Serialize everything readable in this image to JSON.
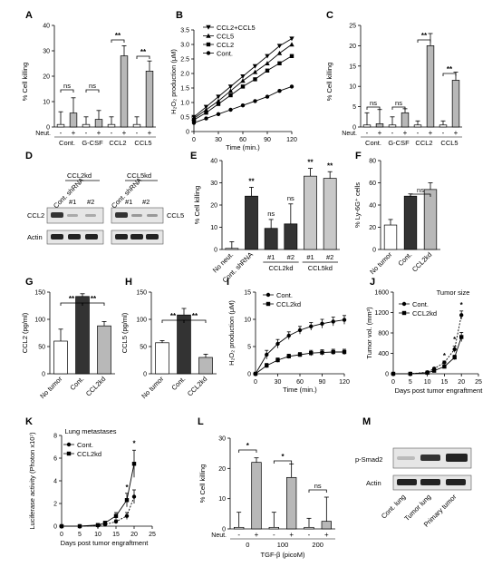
{
  "figure": {
    "panels": {
      "A": {
        "letter": "A",
        "ylabel": "% Cell killing",
        "yticks": [
          "0",
          "10",
          "20",
          "30",
          "40"
        ],
        "neut_label": "Neut.",
        "signs": [
          "-",
          "+"
        ],
        "groups": [
          "Cont.",
          "G-CSF",
          "CCL2",
          "CCL5"
        ],
        "sig": [
          "ns",
          "ns",
          "**",
          "**"
        ]
      },
      "B": {
        "letter": "B",
        "ylabel": "H₂O₂ production (μM)",
        "xlabel": "Time (min.)",
        "yticks": [
          "0",
          "0.5",
          "1.0",
          "1.5",
          "2.0",
          "2.5",
          "3.0",
          "3.5"
        ],
        "xticks": [
          "0",
          "30",
          "60",
          "90",
          "120"
        ],
        "legend": [
          "CCL2+CCL5",
          "CCL5",
          "CCL2",
          "Cont."
        ]
      },
      "C": {
        "letter": "C",
        "ylabel": "% Cell killing",
        "yticks": [
          "0",
          "5",
          "10",
          "15",
          "20",
          "25"
        ],
        "neut_label": "Neut.",
        "signs": [
          "-",
          "+"
        ],
        "groups": [
          "Cont.",
          "G-CSF",
          "CCL2",
          "CCL5"
        ],
        "sig": [
          "ns",
          "ns",
          "**",
          "**"
        ]
      },
      "D": {
        "letter": "D",
        "col_labels": [
          "Cont. shRNA",
          "CCL2kd",
          "Cont. shRNA",
          "CCL5kd"
        ],
        "clones": [
          "#1",
          "#2",
          "#1",
          "#2"
        ],
        "rows_left": [
          "CCL2",
          "Actin"
        ],
        "rows_right": [
          "CCL5"
        ]
      },
      "E": {
        "letter": "E",
        "ylabel": "% Cell killing",
        "yticks": [
          "0",
          "10",
          "20",
          "30",
          "40"
        ],
        "xlabels": [
          "No neut.",
          "Cont. shRNA",
          "#1",
          "#2",
          "#1",
          "#2"
        ],
        "group_labels": [
          "CCL2kd",
          "CCL5kd"
        ],
        "sig": [
          "**",
          "ns",
          "ns",
          "**",
          "**"
        ]
      },
      "F": {
        "letter": "F",
        "ylabel": "% Ly-6G⁺ cells",
        "yticks": [
          "0",
          "20",
          "40",
          "60",
          "80"
        ],
        "xlabels": [
          "No tumor",
          "Cont.",
          "CCL2kd"
        ],
        "sig": [
          "ns"
        ]
      },
      "G": {
        "letter": "G",
        "ylabel": "CCL2 (pg/ml)",
        "yticks": [
          "0",
          "50",
          "100",
          "150"
        ],
        "xlabels": [
          "No tumor",
          "Cont.",
          "CCL2kd"
        ],
        "sig": [
          "**",
          "**"
        ]
      },
      "H": {
        "letter": "H",
        "ylabel": "CCL5 (pg/ml)",
        "yticks": [
          "0",
          "50",
          "100",
          "150"
        ],
        "xlabels": [
          "No tumor",
          "Cont.",
          "CCL2kd"
        ],
        "sig": [
          "**",
          "**"
        ]
      },
      "I": {
        "letter": "I",
        "ylabel": "H₂O₂ production (μM)",
        "xlabel": "Time (min.)",
        "yticks": [
          "0",
          "5",
          "10",
          "15"
        ],
        "xticks": [
          "0",
          "30",
          "60",
          "90",
          "120"
        ],
        "legend": [
          "Cont.",
          "CCL2kd"
        ]
      },
      "J": {
        "letter": "J",
        "title": "Tumor size",
        "ylabel": "Tumor vol. (mm³)",
        "xlabel": "Days post tumor engraftment",
        "yticks": [
          "0",
          "400",
          "800",
          "1200",
          "1600"
        ],
        "xticks": [
          "0",
          "5",
          "10",
          "15",
          "20",
          "25"
        ],
        "legend": [
          "Cont.",
          "CCL2kd"
        ],
        "sig": [
          "*",
          "*",
          "*"
        ]
      },
      "K": {
        "letter": "K",
        "title": "Lung metastases",
        "ylabel": "Luciferase activity (Photon x10⁷)",
        "xlabel": "Days post tumor engraftment",
        "yticks": [
          "0",
          "2",
          "4",
          "6",
          "8"
        ],
        "xticks": [
          "0",
          "5",
          "10",
          "15",
          "20",
          "25"
        ],
        "legend": [
          "Cont.",
          "CCL2kd"
        ],
        "sig": [
          "*",
          "*"
        ]
      },
      "L": {
        "letter": "L",
        "ylabel": "% Cell killing",
        "xlabel": "TGF-β (picoM)",
        "yticks": [
          "0",
          "10",
          "20",
          "30"
        ],
        "neut_label": "Neut.",
        "signs": [
          "-",
          "+"
        ],
        "groups": [
          "0",
          "100",
          "200"
        ],
        "sig": [
          "*",
          "*",
          "ns"
        ]
      },
      "M": {
        "letter": "M",
        "rows": [
          "p-Smad2",
          "Actin"
        ],
        "lanes": [
          "Cont. lung",
          "Tumor lung",
          "Primary tumor"
        ]
      }
    }
  },
  "chart_data": [
    {
      "type": "bar",
      "panel": "A",
      "ylabel": "% Cell killing",
      "ylim": [
        0,
        40
      ],
      "categories": [
        "Cont. -",
        "Cont. +",
        "G-CSF -",
        "G-CSF +",
        "CCL2 -",
        "CCL2 +",
        "CCL5 -",
        "CCL5 +"
      ],
      "values": [
        1,
        5.5,
        1,
        3,
        1,
        28,
        1,
        22
      ],
      "errors": [
        5,
        6,
        3,
        3.5,
        3,
        4,
        3,
        4
      ],
      "colors": [
        "#ffffff",
        "#b8b8b8",
        "#ffffff",
        "#b8b8b8",
        "#ffffff",
        "#b8b8b8",
        "#ffffff",
        "#b8b8b8"
      ]
    },
    {
      "type": "line",
      "panel": "B",
      "ylabel": "H₂O₂ production (μM)",
      "xlabel": "Time (min.)",
      "ylim": [
        0,
        3.5
      ],
      "xlim": [
        0,
        120
      ],
      "x": [
        0,
        15,
        30,
        45,
        60,
        75,
        90,
        105,
        120
      ],
      "series": [
        {
          "name": "CCL2+CCL5",
          "values": [
            0.5,
            0.85,
            1.2,
            1.55,
            1.9,
            2.25,
            2.6,
            2.95,
            3.2
          ]
        },
        {
          "name": "CCL5",
          "values": [
            0.45,
            0.75,
            1.05,
            1.4,
            1.75,
            2.05,
            2.35,
            2.7,
            3.0
          ]
        },
        {
          "name": "CCL2",
          "values": [
            0.4,
            0.65,
            0.95,
            1.25,
            1.55,
            1.8,
            2.1,
            2.35,
            2.6
          ]
        },
        {
          "name": "Cont.",
          "values": [
            0.3,
            0.45,
            0.6,
            0.75,
            0.9,
            1.05,
            1.2,
            1.4,
            1.55
          ]
        }
      ]
    },
    {
      "type": "bar",
      "panel": "C",
      "ylabel": "% Cell killing",
      "ylim": [
        0,
        25
      ],
      "categories": [
        "Cont. -",
        "Cont. +",
        "G-CSF -",
        "G-CSF +",
        "CCL2 -",
        "CCL2 +",
        "CCL5 -",
        "CCL5 +"
      ],
      "values": [
        0.5,
        0.8,
        0.5,
        3.5,
        0.5,
        20,
        0.5,
        11.5
      ],
      "errors": [
        3,
        3.5,
        2,
        1,
        1,
        3,
        1,
        2
      ],
      "colors": [
        "#ffffff",
        "#b8b8b8",
        "#ffffff",
        "#b8b8b8",
        "#ffffff",
        "#b8b8b8",
        "#ffffff",
        "#b8b8b8"
      ]
    },
    {
      "type": "bar",
      "panel": "E",
      "ylabel": "% Cell killing",
      "ylim": [
        0,
        40
      ],
      "categories": [
        "No neut.",
        "Cont. shRNA",
        "CCL2kd #1",
        "CCL2kd #2",
        "CCL5kd #1",
        "CCL5kd #2"
      ],
      "values": [
        0.5,
        24,
        9.5,
        11.5,
        33,
        32
      ],
      "errors": [
        3,
        4,
        4,
        9,
        3.5,
        3
      ],
      "colors": [
        "#ffffff",
        "#333333",
        "#333333",
        "#333333",
        "#c8c8c8",
        "#c8c8c8"
      ]
    },
    {
      "type": "bar",
      "panel": "F",
      "ylabel": "% Ly-6G⁺ cells",
      "ylim": [
        0,
        80
      ],
      "categories": [
        "No tumor",
        "Cont.",
        "CCL2kd"
      ],
      "values": [
        22,
        48,
        54
      ],
      "errors": [
        5,
        2,
        6
      ],
      "colors": [
        "#ffffff",
        "#333333",
        "#b8b8b8"
      ]
    },
    {
      "type": "bar",
      "panel": "G",
      "ylabel": "CCL2 (pg/ml)",
      "ylim": [
        0,
        150
      ],
      "categories": [
        "No tumor",
        "Cont.",
        "CCL2kd"
      ],
      "values": [
        60,
        142,
        88
      ],
      "errors": [
        22,
        5,
        8
      ],
      "colors": [
        "#ffffff",
        "#333333",
        "#b8b8b8"
      ]
    },
    {
      "type": "bar",
      "panel": "H",
      "ylabel": "CCL5 (pg/ml)",
      "ylim": [
        0,
        150
      ],
      "categories": [
        "No tumor",
        "Cont.",
        "CCL2kd"
      ],
      "values": [
        57,
        108,
        30
      ],
      "errors": [
        4,
        12,
        6
      ],
      "colors": [
        "#ffffff",
        "#333333",
        "#b8b8b8"
      ]
    },
    {
      "type": "line",
      "panel": "I",
      "ylabel": "H₂O₂ production (μM)",
      "xlabel": "Time (min.)",
      "ylim": [
        0,
        15
      ],
      "xlim": [
        0,
        120
      ],
      "x": [
        0,
        15,
        30,
        45,
        60,
        75,
        90,
        105,
        120
      ],
      "series": [
        {
          "name": "Cont.",
          "values": [
            0,
            3.5,
            5.5,
            7,
            8,
            8.7,
            9.2,
            9.6,
            9.9
          ]
        },
        {
          "name": "CCL2kd",
          "values": [
            0,
            1.5,
            2.5,
            3.2,
            3.5,
            3.8,
            3.9,
            4.0,
            4.0
          ]
        }
      ],
      "errors": [
        [
          0,
          0.8,
          0.8,
          0.7,
          0.7,
          0.7,
          0.8,
          0.8,
          0.8
        ],
        [
          0,
          0.4,
          0.4,
          0.4,
          0.4,
          0.5,
          0.5,
          0.5,
          0.5
        ]
      ]
    },
    {
      "type": "line",
      "panel": "J",
      "title": "Tumor size",
      "ylabel": "Tumor vol. (mm³)",
      "xlabel": "Days post tumor engraftment",
      "ylim": [
        0,
        1600
      ],
      "xlim": [
        0,
        25
      ],
      "x": [
        0,
        5,
        10,
        12,
        15,
        18,
        20
      ],
      "series": [
        {
          "name": "Cont.",
          "values": [
            0,
            0,
            30,
            100,
            220,
            480,
            1150
          ]
        },
        {
          "name": "CCL2kd",
          "values": [
            0,
            0,
            20,
            60,
            140,
            320,
            720
          ]
        }
      ],
      "errors": [
        [
          0,
          0,
          10,
          20,
          30,
          60,
          80
        ],
        [
          0,
          0,
          8,
          15,
          25,
          45,
          90
        ]
      ]
    },
    {
      "type": "line",
      "panel": "K",
      "title": "Lung metastases",
      "ylabel": "Luciferase activity (Photon x10⁷)",
      "xlabel": "Days post tumor engraftment",
      "ylim": [
        0,
        8
      ],
      "xlim": [
        0,
        25
      ],
      "x": [
        0,
        5,
        10,
        12,
        15,
        18,
        20
      ],
      "series": [
        {
          "name": "Cont.",
          "values": [
            0,
            0,
            0.05,
            0.15,
            0.4,
            0.9,
            2.6
          ]
        },
        {
          "name": "CCL2kd",
          "values": [
            0,
            0,
            0.1,
            0.3,
            0.9,
            2.3,
            5.5
          ]
        }
      ],
      "errors": [
        [
          0,
          0,
          0.02,
          0.05,
          0.15,
          0.3,
          0.6
        ],
        [
          0,
          0,
          0.05,
          0.1,
          0.3,
          0.6,
          1.2
        ]
      ]
    },
    {
      "type": "bar",
      "panel": "L",
      "ylabel": "% Cell killing",
      "xlabel": "TGF-β (picoM)",
      "ylim": [
        0,
        30
      ],
      "categories": [
        "0 -",
        "0 +",
        "100 -",
        "100 +",
        "200 -",
        "200 +"
      ],
      "values": [
        0.5,
        22,
        0.5,
        17,
        0.5,
        2.5
      ],
      "errors": [
        5,
        1.5,
        5,
        4.5,
        3,
        8
      ],
      "colors": [
        "#ffffff",
        "#b8b8b8",
        "#ffffff",
        "#b8b8b8",
        "#ffffff",
        "#b8b8b8"
      ]
    }
  ]
}
